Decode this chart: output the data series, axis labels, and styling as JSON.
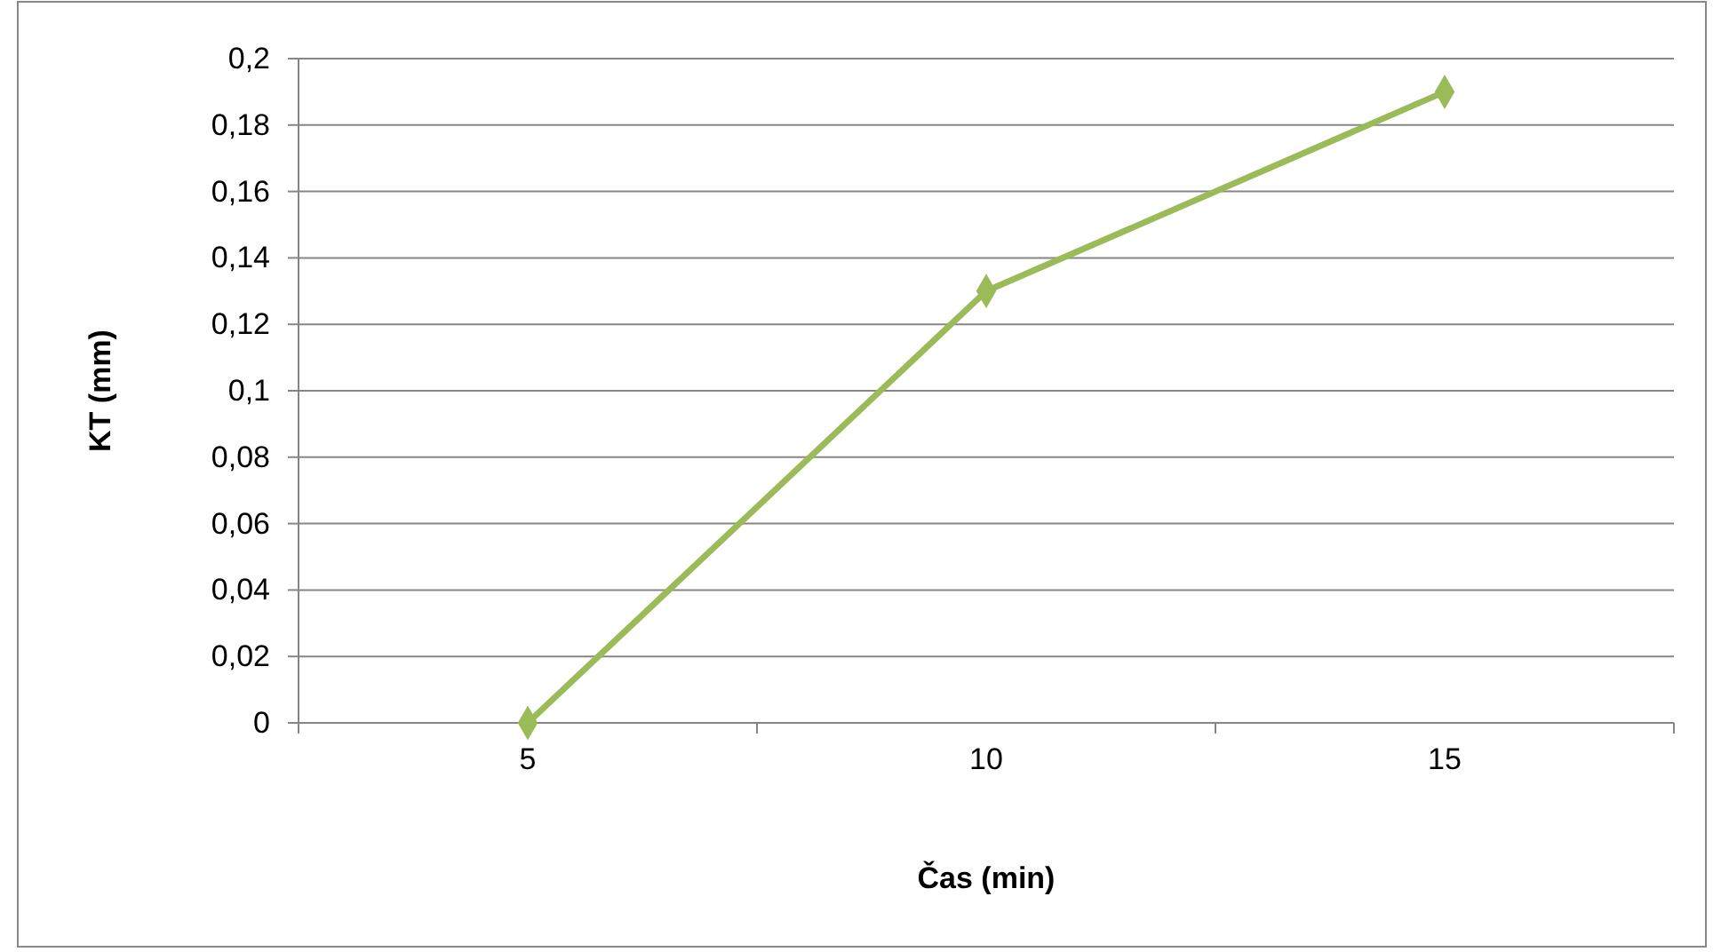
{
  "chart_data": {
    "type": "line",
    "xlabel": "Čas (min)",
    "ylabel": "KT (mm)",
    "categories": [
      "5",
      "10",
      "15"
    ],
    "series": [
      {
        "color": "#9bbb59",
        "values": [
          0,
          0.13,
          0.19
        ]
      }
    ],
    "ylim": [
      0,
      0.2
    ],
    "yticks": [
      0,
      {
        "value": 0.02,
        "label": "0,02"
      },
      {
        "value": 0.04,
        "label": "0,04"
      },
      {
        "value": 0.06,
        "label": "0,06"
      },
      {
        "value": 0.08,
        "label": "0,08"
      },
      {
        "value": 0.1,
        "label": "0,1"
      },
      {
        "value": 0.12,
        "label": "0,12"
      },
      {
        "value": 0.14,
        "label": "0,14"
      },
      {
        "value": 0.16,
        "label": "0,16"
      },
      {
        "value": 0.18,
        "label": "0,18"
      },
      {
        "value": 0.2,
        "label": "0,2"
      }
    ],
    "grid": "y",
    "marker": "diamond",
    "line_style": "solid"
  }
}
